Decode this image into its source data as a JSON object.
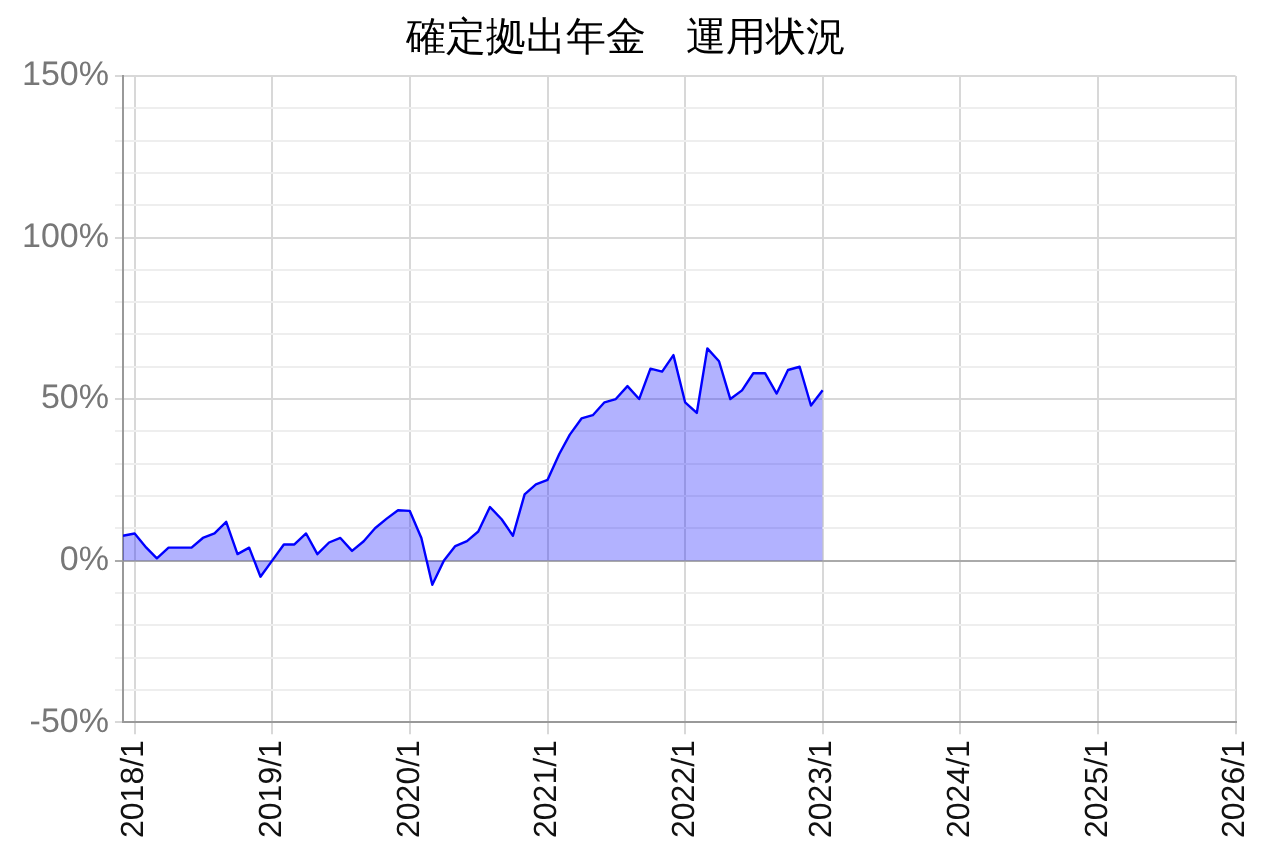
{
  "chart_data": {
    "type": "area",
    "title": "確定拠出年金　運用状況",
    "x": [
      "2017-12",
      "2018-01",
      "2018-02",
      "2018-03",
      "2018-04",
      "2018-05",
      "2018-06",
      "2018-07",
      "2018-08",
      "2018-09",
      "2018-10",
      "2018-11",
      "2018-12",
      "2019-01",
      "2019-02",
      "2019-03",
      "2019-04",
      "2019-05",
      "2019-06",
      "2019-07",
      "2019-08",
      "2019-09",
      "2019-10",
      "2019-11",
      "2019-12",
      "2020-01",
      "2020-02",
      "2020-03",
      "2020-04",
      "2020-05",
      "2020-06",
      "2020-07",
      "2020-08",
      "2020-09",
      "2020-10",
      "2020-11",
      "2020-12",
      "2021-01",
      "2021-02",
      "2021-03",
      "2021-04",
      "2021-05",
      "2021-06",
      "2021-07",
      "2021-08",
      "2021-09",
      "2021-10",
      "2021-11",
      "2021-12",
      "2022-01",
      "2022-02",
      "2022-03",
      "2022-04",
      "2022-05",
      "2022-06",
      "2022-07",
      "2022-08",
      "2022-09",
      "2022-10",
      "2022-11",
      "2022-12",
      "2023-01"
    ],
    "series": [
      {
        "color": "#0000ff",
        "values": [
          7.7,
          8.4,
          4,
          0.7,
          4,
          4,
          4,
          7,
          8.4,
          12,
          2,
          4,
          -5,
          0,
          5,
          5,
          8.4,
          2,
          5.6,
          7,
          3,
          6,
          10,
          13,
          15.6,
          15.4,
          7,
          -7.5,
          0,
          4.5,
          6,
          9,
          16.6,
          12.8,
          7.7,
          20.5,
          23.6,
          25,
          33,
          39,
          44,
          45,
          49,
          50,
          54,
          50,
          59.4,
          58.5,
          63.6,
          49,
          45.7,
          65.7,
          61.7,
          50,
          52.7,
          58,
          58,
          51.7,
          59,
          60,
          48,
          52.7
        ]
      }
    ],
    "xlim": [
      "2017-12",
      "2026-01"
    ],
    "xticks": [
      {
        "value": "2018-01",
        "label": "2018/1"
      },
      {
        "value": "2019-01",
        "label": "2019/1"
      },
      {
        "value": "2020-01",
        "label": "2020/1"
      },
      {
        "value": "2021-01",
        "label": "2021/1"
      },
      {
        "value": "2022-01",
        "label": "2022/1"
      },
      {
        "value": "2023-01",
        "label": "2023/1"
      },
      {
        "value": "2024-01",
        "label": "2024/1"
      },
      {
        "value": "2025-01",
        "label": "2025/1"
      },
      {
        "value": "2026-01",
        "label": "2026/1"
      }
    ],
    "ylim": [
      -50,
      150
    ],
    "yticks": [
      {
        "value": -50,
        "label": "-50%"
      },
      {
        "value": -40,
        "label": null
      },
      {
        "value": -30,
        "label": null
      },
      {
        "value": -20,
        "label": null
      },
      {
        "value": -10,
        "label": null
      },
      {
        "value": 0,
        "label": "0%"
      },
      {
        "value": 10,
        "label": null
      },
      {
        "value": 20,
        "label": null
      },
      {
        "value": 30,
        "label": null
      },
      {
        "value": 40,
        "label": null
      },
      {
        "value": 50,
        "label": "50%"
      },
      {
        "value": 60,
        "label": null
      },
      {
        "value": 70,
        "label": null
      },
      {
        "value": 80,
        "label": null
      },
      {
        "value": 90,
        "label": null
      },
      {
        "value": 100,
        "label": "100%"
      },
      {
        "value": 110,
        "label": null
      },
      {
        "value": 120,
        "label": null
      },
      {
        "value": 130,
        "label": null
      },
      {
        "value": 140,
        "label": null
      },
      {
        "value": 150,
        "label": "150%"
      }
    ],
    "grid": true,
    "legend": false,
    "marker": "none"
  }
}
